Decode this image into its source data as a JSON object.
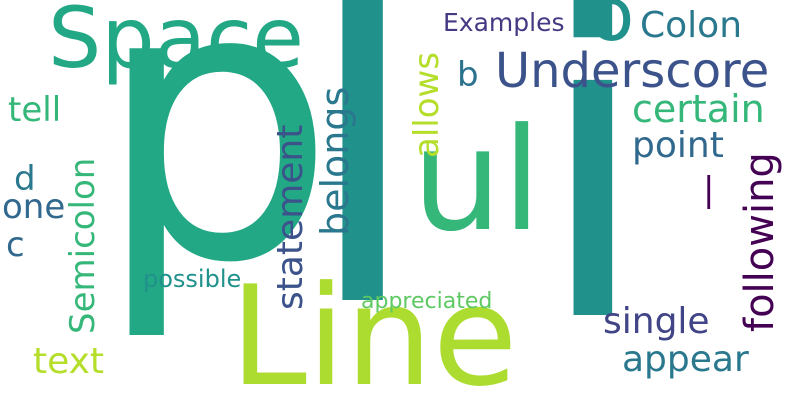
{
  "words": [
    {
      "text": "p",
      "color": "#22a884"
    },
    {
      "text": "l",
      "color": "#21918c"
    },
    {
      "text": "i",
      "color": "#21918c"
    },
    {
      "text": "Line",
      "color": "#addc30"
    },
    {
      "text": "ul",
      "color": "#35b779"
    },
    {
      "text": "Space",
      "color": "#22a884"
    },
    {
      "text": "Underscore",
      "color": "#3b528b"
    },
    {
      "text": "Colon",
      "color": "#2a788e"
    },
    {
      "text": "Examples",
      "color": "#443983"
    },
    {
      "text": "b",
      "color": "#2c728e"
    },
    {
      "text": "certain",
      "color": "#35b779"
    },
    {
      "text": "point",
      "color": "#31688e"
    },
    {
      "text": "following",
      "color": "#440154"
    },
    {
      "text": "|",
      "color": "#440154"
    },
    {
      "text": "allows",
      "color": "#b5de2b"
    },
    {
      "text": "belongs",
      "color": "#2a788e"
    },
    {
      "text": "statement",
      "color": "#3b528b"
    },
    {
      "text": "Semicolon",
      "color": "#35b779"
    },
    {
      "text": "tell",
      "color": "#35b779"
    },
    {
      "text": "d",
      "color": "#2a788e"
    },
    {
      "text": "one",
      "color": "#31688e"
    },
    {
      "text": "c",
      "color": "#31688e"
    },
    {
      "text": "possible",
      "color": "#21918c"
    },
    {
      "text": "appreciated",
      "color": "#5ec962"
    },
    {
      "text": "single",
      "color": "#414487"
    },
    {
      "text": "appear",
      "color": "#2a788e"
    },
    {
      "text": "text",
      "color": "#b5de2b"
    },
    {
      "text": "o",
      "color": "#21918c"
    }
  ]
}
